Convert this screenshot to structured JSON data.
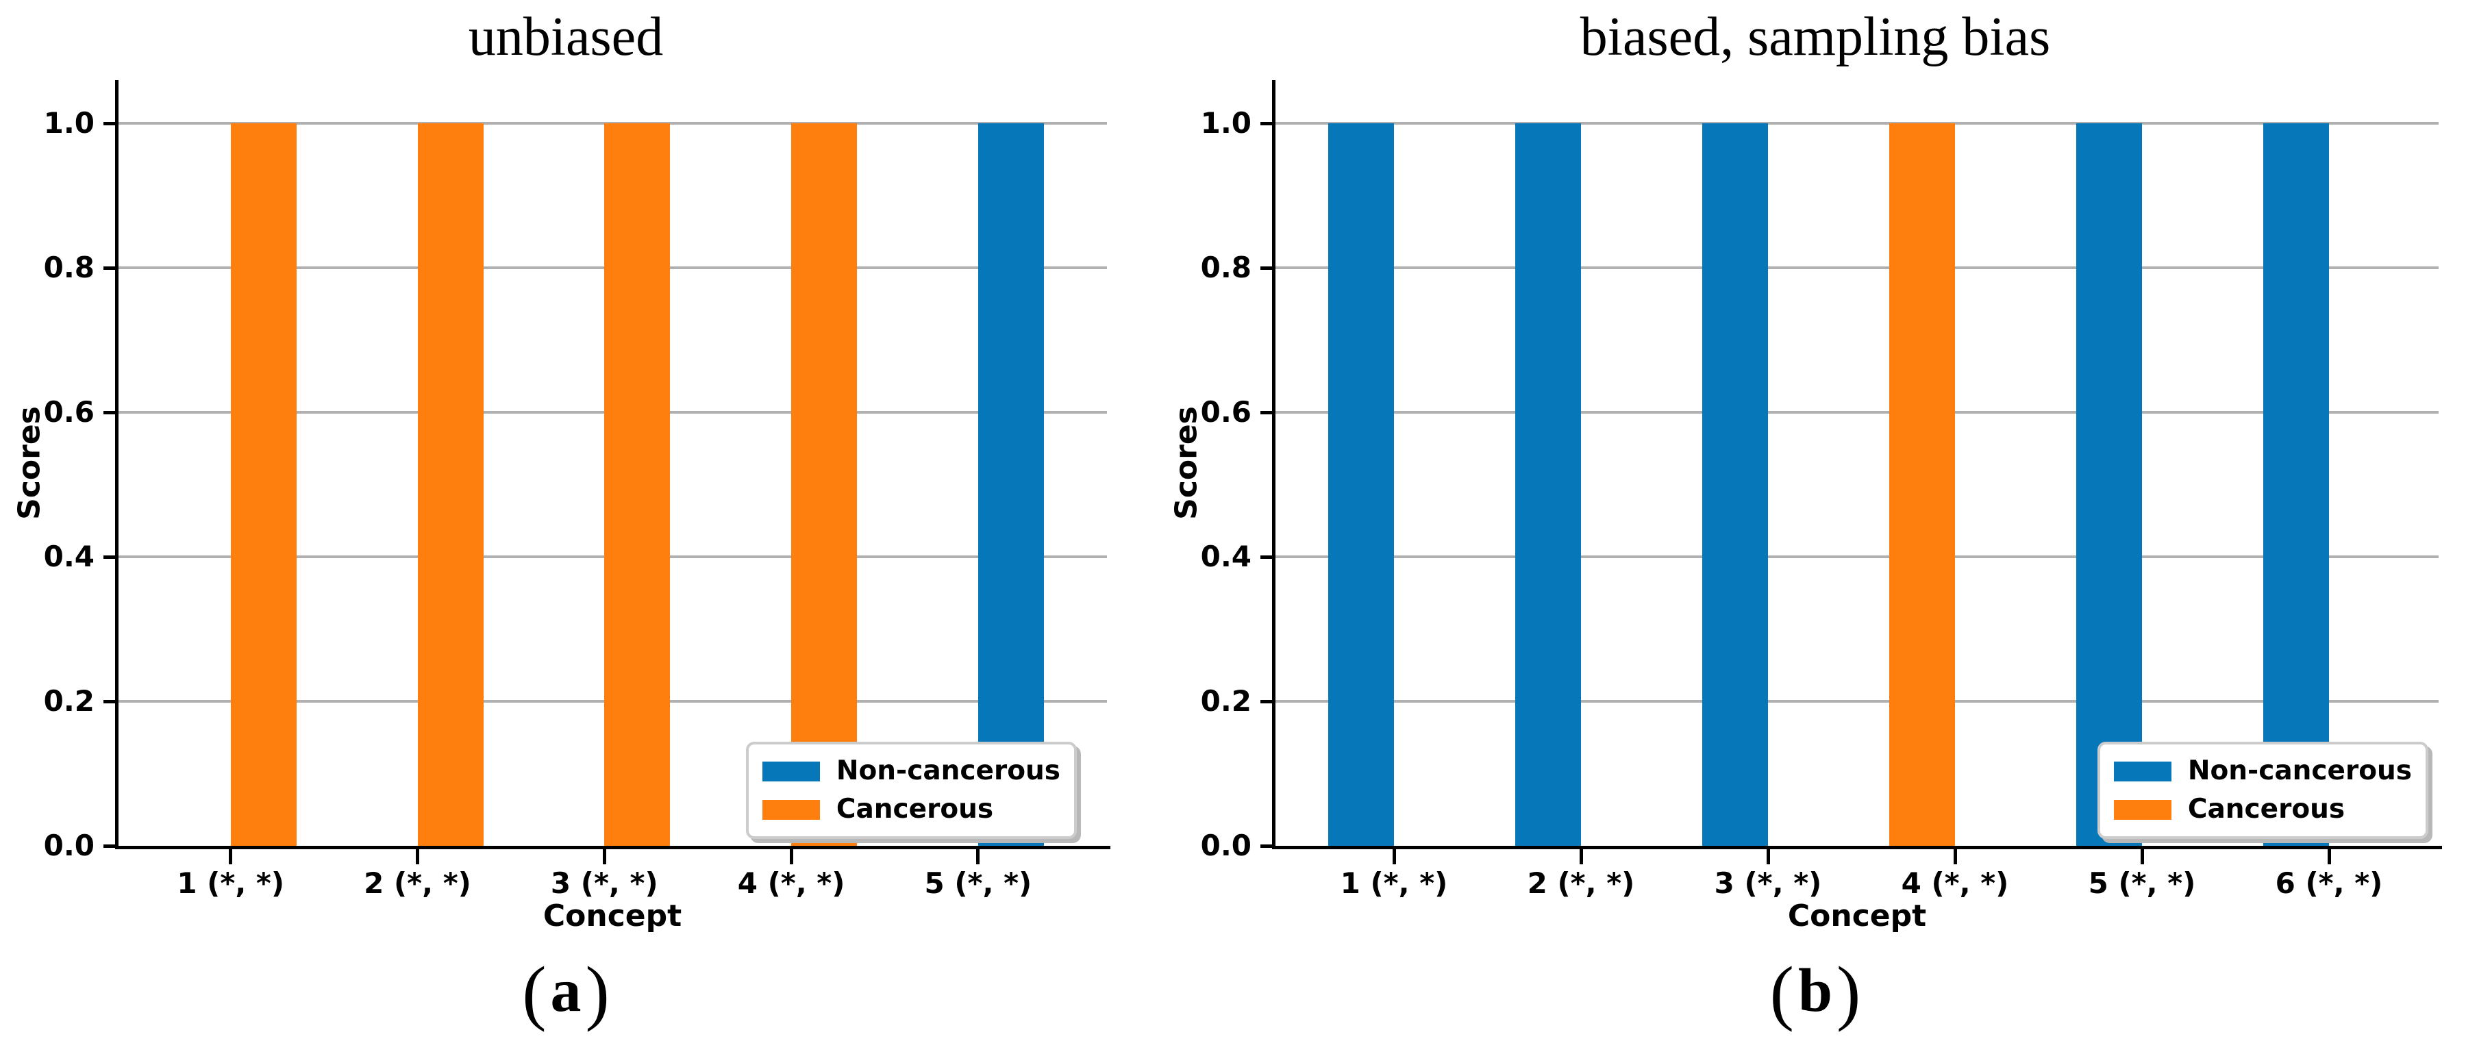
{
  "chart_data": [
    {
      "type": "bar",
      "title": "unbiased",
      "panel_label": {
        "open": "(",
        "letter": "a",
        "close": ")"
      },
      "xlabel": "Concept",
      "ylabel": "Scores",
      "categories": [
        "1 (*, *)",
        "2 (*, *)",
        "3 (*, *)",
        "4 (*, *)",
        "5 (*, *)"
      ],
      "series": [
        {
          "name": "Non-cancerous",
          "color": "#0677b8",
          "values": [
            null,
            null,
            null,
            null,
            1.0
          ]
        },
        {
          "name": "Cancerous",
          "color": "#ff7f0e",
          "values": [
            1.0,
            1.0,
            1.0,
            1.0,
            null
          ]
        }
      ],
      "ytick_labels": [
        "0.0",
        "0.2",
        "0.4",
        "0.6",
        "0.8",
        "1.0"
      ],
      "ylim": [
        0.0,
        1.06
      ],
      "grid": true,
      "grid_color": "#b0b0b0",
      "legend_position": "lower right",
      "bar_alignment": "right-of-tick"
    },
    {
      "type": "bar",
      "title": "biased, sampling bias",
      "panel_label": {
        "open": "(",
        "letter": "b",
        "close": ")"
      },
      "xlabel": "Concept",
      "ylabel": "Scores",
      "categories": [
        "1 (*, *)",
        "2 (*, *)",
        "3 (*, *)",
        "4 (*, *)",
        "5 (*, *)",
        "6 (*, *)"
      ],
      "series": [
        {
          "name": "Non-cancerous",
          "color": "#0677b8",
          "values": [
            1.0,
            1.0,
            1.0,
            null,
            1.0,
            1.0
          ]
        },
        {
          "name": "Cancerous",
          "color": "#ff7f0e",
          "values": [
            null,
            null,
            null,
            1.0,
            null,
            null
          ]
        }
      ],
      "ytick_labels": [
        "0.0",
        "0.2",
        "0.4",
        "0.6",
        "0.8",
        "1.0"
      ],
      "ylim": [
        0.0,
        1.06
      ],
      "grid": true,
      "grid_color": "#b0b0b0",
      "legend_position": "lower right",
      "bar_alignment": "left-of-tick"
    }
  ]
}
